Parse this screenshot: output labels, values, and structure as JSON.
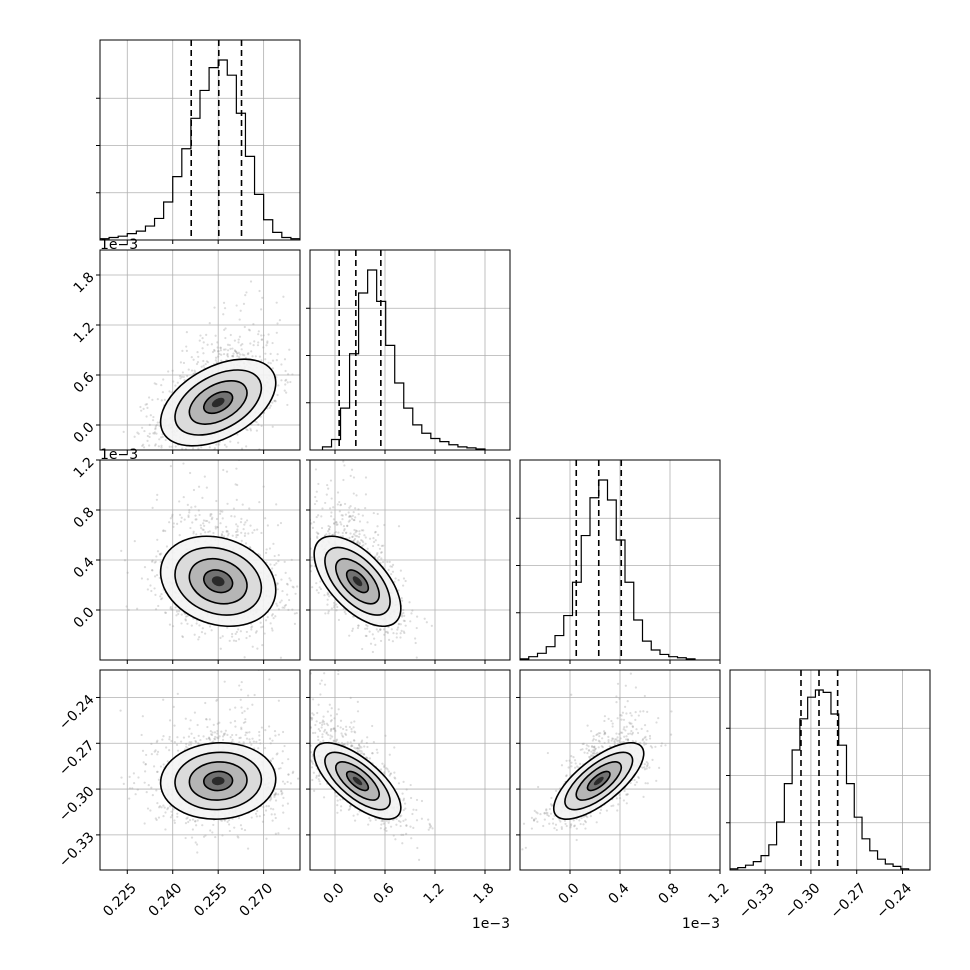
{
  "chart_data": {
    "type": "corner",
    "title": "",
    "parameters": [
      {
        "index": 0,
        "range": [
          0.216,
          0.282
        ],
        "ticks": [
          0.225,
          0.24,
          0.255,
          0.27
        ],
        "tick_labels": [
          "0.225",
          "0.240",
          "0.255",
          "0.270"
        ],
        "exponent_label": ""
      },
      {
        "index": 1,
        "range": [
          -0.0003,
          0.0021
        ],
        "ticks": [
          0.0,
          0.0006,
          0.0012,
          0.0018
        ],
        "tick_labels": [
          "0.0",
          "0.6",
          "1.2",
          "1.8"
        ],
        "exponent_label": "1e−3"
      },
      {
        "index": 2,
        "range": [
          -0.0004,
          0.0012
        ],
        "ticks": [
          0.0,
          0.0004,
          0.0008,
          0.0012
        ],
        "tick_labels": [
          "0.0",
          "0.4",
          "0.8",
          "1.2"
        ],
        "exponent_label": "1e−3"
      },
      {
        "index": 3,
        "range": [
          -0.353,
          -0.222
        ],
        "ticks": [
          -0.33,
          -0.3,
          -0.27,
          -0.24
        ],
        "tick_labels": [
          "−0.33",
          "−0.30",
          "−0.27",
          "−0.24"
        ],
        "exponent_label": ""
      }
    ],
    "histograms": [
      {
        "param": 0,
        "bin_edges_range": [
          0.216,
          0.282
        ],
        "counts": [
          1,
          2,
          3,
          5,
          7,
          11,
          17,
          30,
          50,
          72,
          96,
          118,
          136,
          142,
          130,
          100,
          66,
          36,
          16,
          6,
          2,
          1
        ],
        "quantiles": [
          0.2461,
          0.2552,
          0.2627
        ]
      },
      {
        "param": 1,
        "bin_edges_range": [
          -0.00015,
          0.0018
        ],
        "counts": [
          3,
          10,
          40,
          92,
          150,
          172,
          142,
          100,
          64,
          40,
          24,
          16,
          11,
          8,
          5,
          3,
          2,
          1
        ],
        "quantiles": [
          5e-05,
          0.00025,
          0.00055
        ]
      },
      {
        "param": 2,
        "bin_edges_range": [
          -0.0004,
          0.001
        ],
        "counts": [
          1,
          3,
          6,
          12,
          22,
          40,
          70,
          112,
          146,
          162,
          144,
          108,
          70,
          36,
          17,
          9,
          5,
          3,
          2,
          1
        ],
        "quantiles": [
          5e-05,
          0.00023,
          0.00041
        ]
      },
      {
        "param": 3,
        "bin_edges_range": [
          -0.353,
          -0.236
        ],
        "counts": [
          1,
          2,
          4,
          7,
          12,
          21,
          40,
          72,
          100,
          126,
          144,
          150,
          148,
          130,
          104,
          72,
          44,
          26,
          16,
          9,
          5,
          3,
          1
        ],
        "quantiles": [
          -0.3065,
          -0.2947,
          -0.2825
        ]
      }
    ],
    "pairs": [
      {
        "x": 0,
        "y": 1,
        "mean": [
          0.255,
          0.00027
        ],
        "std": [
          0.0095,
          0.00026
        ],
        "corr": 0.45
      },
      {
        "x": 0,
        "y": 2,
        "mean": [
          0.255,
          0.00023
        ],
        "std": [
          0.0095,
          0.00018
        ],
        "corr": -0.2
      },
      {
        "x": 1,
        "y": 2,
        "mean": [
          0.00027,
          0.00023
        ],
        "std": [
          0.00026,
          0.00018
        ],
        "corr": -0.6
      },
      {
        "x": 0,
        "y": 3,
        "mean": [
          0.255,
          -0.2947
        ],
        "std": [
          0.0095,
          0.0125
        ],
        "corr": 0.05
      },
      {
        "x": 1,
        "y": 3,
        "mean": [
          0.00027,
          -0.2947
        ],
        "std": [
          0.00026,
          0.0125
        ],
        "corr": -0.7
      },
      {
        "x": 2,
        "y": 3,
        "mean": [
          0.00023,
          -0.2947
        ],
        "std": [
          0.00018,
          0.0125
        ],
        "corr": 0.72
      }
    ],
    "grid": true,
    "contour_levels_sigma": [
      0.5,
      1.0,
      1.5,
      2.0
    ]
  }
}
